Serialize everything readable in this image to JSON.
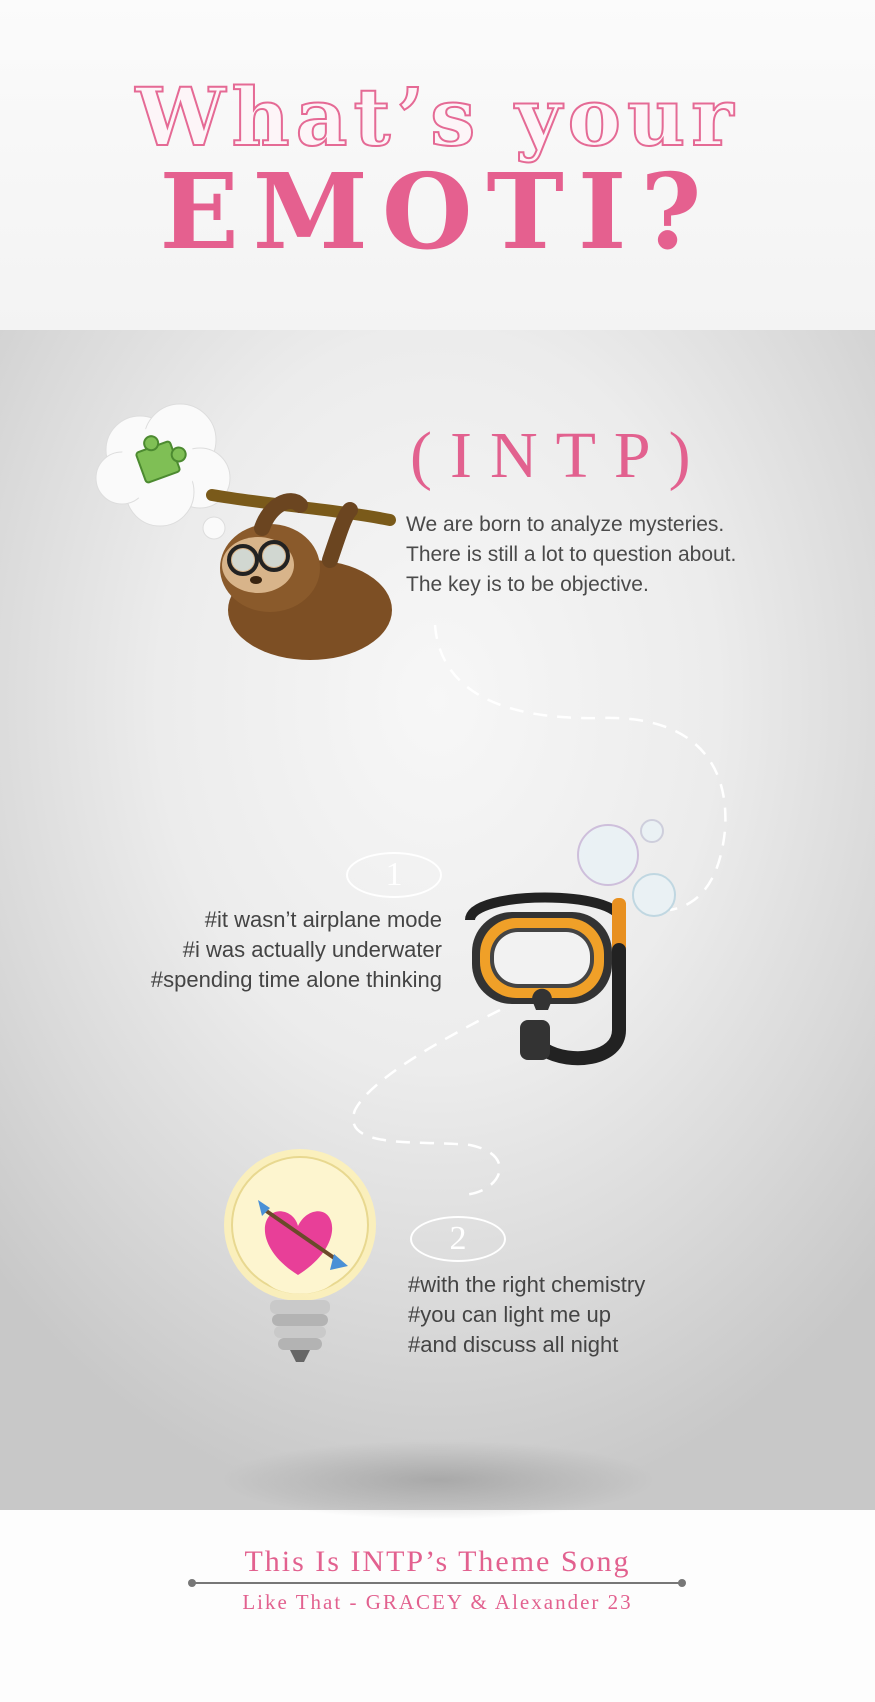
{
  "header": {
    "title_line1": "What’s your",
    "title_line2": "EMOTI?"
  },
  "profile": {
    "type_label": "(INTP)",
    "description": [
      "We are born to analyze mysteries.",
      "There is still a lot to question about.",
      "The key is to be objective."
    ]
  },
  "sections": [
    {
      "number": "1",
      "tags": [
        "#it wasn’t airplane mode",
        "#i was actually underwater",
        "#spending time alone thinking"
      ]
    },
    {
      "number": "2",
      "tags": [
        "#with the right chemistry",
        "#you can light me up",
        "#and discuss all night"
      ]
    }
  ],
  "footer": {
    "song_title": "This Is INTP’s Theme Song",
    "song_artist": "Like That - GRACEY & Alexander 23"
  },
  "icons": [
    "sloth-icon",
    "thought-bubble-icon",
    "puzzle-piece-icon",
    "diving-mask-icon",
    "bubbles-icon",
    "light-bulb-icon",
    "heart-with-arrow-icon"
  ],
  "colors": {
    "accent_pink": "#e5608f",
    "text_gray": "#444444"
  }
}
